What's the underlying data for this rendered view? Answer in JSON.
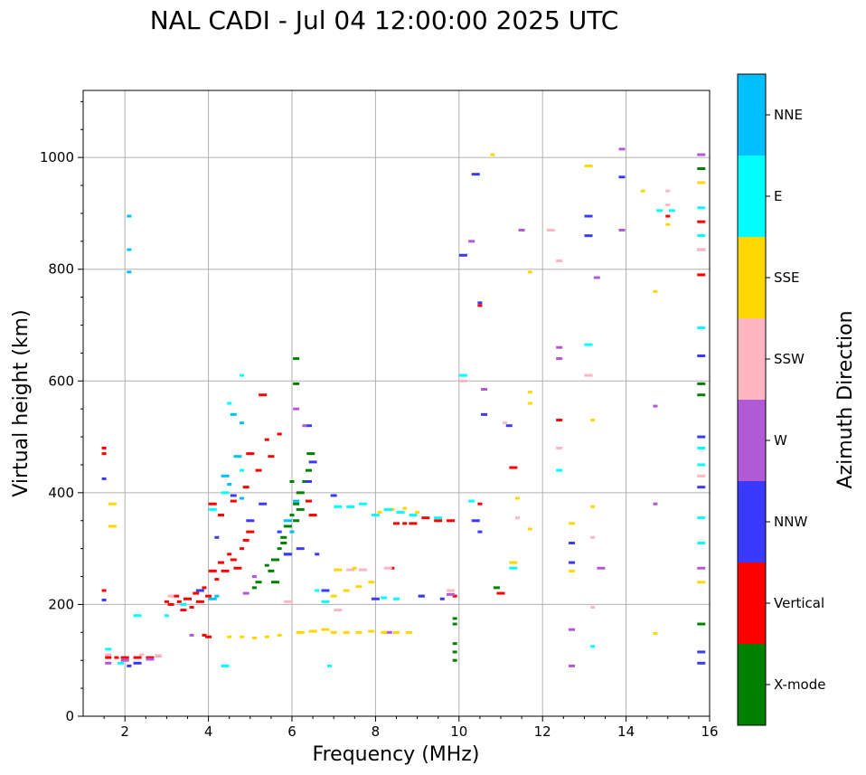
{
  "chart_data": {
    "type": "scatter",
    "title": "NAL CADI - Jul 04 12:00:00 2025 UTC",
    "xlabel": "Frequency (MHz)",
    "ylabel": "Virtual height (km)",
    "xlim": [
      1,
      16
    ],
    "ylim": [
      0,
      1120
    ],
    "xticks": [
      2,
      4,
      6,
      8,
      10,
      12,
      14,
      16
    ],
    "yticks": [
      0,
      200,
      400,
      600,
      800,
      1000
    ],
    "grid": true,
    "colorbar": {
      "label": "Azimuth Direction",
      "categories": [
        "X-mode",
        "Vertical",
        "NNW",
        "W",
        "SSW",
        "SSE",
        "E",
        "NNE"
      ],
      "colors": [
        "#008000",
        "#ff0000",
        "#3a3aff",
        "#b05ad6",
        "#ffb6c1",
        "#ffd700",
        "#00ffff",
        "#00bfff"
      ]
    },
    "series": [
      {
        "name": "X-mode",
        "color": "#008000",
        "points": [
          [
            5.6,
            280
          ],
          [
            5.7,
            300
          ],
          [
            5.8,
            320
          ],
          [
            5.9,
            340
          ],
          [
            6.0,
            360
          ],
          [
            6.1,
            380
          ],
          [
            6.2,
            400
          ],
          [
            6.3,
            420
          ],
          [
            6.4,
            440
          ],
          [
            6.45,
            470
          ],
          [
            5.5,
            260
          ],
          [
            5.6,
            240
          ],
          [
            5.9,
            290
          ],
          [
            6.0,
            330
          ],
          [
            6.1,
            350
          ],
          [
            6.2,
            370
          ],
          [
            6.0,
            420
          ],
          [
            5.8,
            310
          ],
          [
            6.1,
            640
          ],
          [
            6.1,
            595
          ],
          [
            9.9,
            100
          ],
          [
            9.9,
            115
          ],
          [
            9.9,
            130
          ],
          [
            9.9,
            165
          ],
          [
            9.9,
            175
          ],
          [
            9.1,
            215
          ],
          [
            10.9,
            230
          ],
          [
            15.8,
            165
          ],
          [
            15.8,
            575
          ],
          [
            15.8,
            595
          ],
          [
            15.8,
            980
          ],
          [
            5.4,
            270
          ],
          [
            5.2,
            240
          ],
          [
            5.1,
            230
          ]
        ]
      },
      {
        "name": "Vertical",
        "color": "#ff0000",
        "points": [
          [
            1.5,
            480
          ],
          [
            1.5,
            470
          ],
          [
            1.5,
            225
          ],
          [
            1.6,
            105
          ],
          [
            1.8,
            105
          ],
          [
            2.0,
            105
          ],
          [
            2.3,
            105
          ],
          [
            2.6,
            105
          ],
          [
            2.8,
            108
          ],
          [
            3.0,
            205
          ],
          [
            3.1,
            200
          ],
          [
            3.2,
            215
          ],
          [
            3.3,
            205
          ],
          [
            3.4,
            190
          ],
          [
            3.5,
            210
          ],
          [
            3.6,
            195
          ],
          [
            3.7,
            220
          ],
          [
            3.8,
            205
          ],
          [
            3.9,
            230
          ],
          [
            4.0,
            215
          ],
          [
            4.1,
            260
          ],
          [
            4.2,
            245
          ],
          [
            4.3,
            275
          ],
          [
            4.4,
            260
          ],
          [
            4.5,
            290
          ],
          [
            4.6,
            280
          ],
          [
            4.7,
            265
          ],
          [
            4.8,
            300
          ],
          [
            4.9,
            315
          ],
          [
            5.0,
            330
          ],
          [
            4.1,
            380
          ],
          [
            4.3,
            360
          ],
          [
            4.6,
            385
          ],
          [
            4.9,
            410
          ],
          [
            5.2,
            440
          ],
          [
            5.4,
            495
          ],
          [
            5.7,
            505
          ],
          [
            5.0,
            470
          ],
          [
            5.5,
            465
          ],
          [
            5.3,
            575
          ],
          [
            3.9,
            145
          ],
          [
            4.0,
            142
          ],
          [
            6.4,
            385
          ],
          [
            6.5,
            360
          ],
          [
            8.5,
            345
          ],
          [
            8.7,
            345
          ],
          [
            8.9,
            345
          ],
          [
            9.2,
            355
          ],
          [
            9.5,
            350
          ],
          [
            9.8,
            350
          ],
          [
            8.4,
            265
          ],
          [
            9.9,
            215
          ],
          [
            10.5,
            380
          ],
          [
            11.0,
            220
          ],
          [
            10.5,
            735
          ],
          [
            11.3,
            445
          ],
          [
            12.4,
            530
          ],
          [
            15.0,
            895
          ],
          [
            15.8,
            790
          ],
          [
            15.8,
            885
          ]
        ]
      },
      {
        "name": "NNW",
        "color": "#3a3aff",
        "points": [
          [
            1.5,
            425
          ],
          [
            1.5,
            208
          ],
          [
            2.1,
            90
          ],
          [
            2.3,
            95
          ],
          [
            3.8,
            225
          ],
          [
            4.2,
            320
          ],
          [
            4.6,
            395
          ],
          [
            5.0,
            350
          ],
          [
            5.3,
            380
          ],
          [
            5.7,
            330
          ],
          [
            5.9,
            290
          ],
          [
            6.2,
            300
          ],
          [
            6.4,
            420
          ],
          [
            6.5,
            455
          ],
          [
            6.4,
            520
          ],
          [
            6.6,
            290
          ],
          [
            6.8,
            225
          ],
          [
            7.0,
            395
          ],
          [
            8.0,
            210
          ],
          [
            9.1,
            215
          ],
          [
            9.6,
            210
          ],
          [
            10.4,
            970
          ],
          [
            10.5,
            740
          ],
          [
            10.5,
            330
          ],
          [
            10.4,
            350
          ],
          [
            10.6,
            540
          ],
          [
            11.2,
            520
          ],
          [
            12.7,
            275
          ],
          [
            12.7,
            310
          ],
          [
            13.1,
            895
          ],
          [
            13.1,
            860
          ],
          [
            13.9,
            965
          ],
          [
            15.8,
            95
          ],
          [
            15.8,
            115
          ],
          [
            15.8,
            500
          ],
          [
            15.8,
            835
          ],
          [
            15.8,
            645
          ],
          [
            15.8,
            410
          ],
          [
            10.1,
            825
          ]
        ]
      },
      {
        "name": "W",
        "color": "#b05ad6",
        "points": [
          [
            1.6,
            95
          ],
          [
            2.0,
            100
          ],
          [
            2.6,
            102
          ],
          [
            3.6,
            145
          ],
          [
            4.9,
            220
          ],
          [
            5.1,
            250
          ],
          [
            6.1,
            550
          ],
          [
            6.3,
            520
          ],
          [
            8.3,
            150
          ],
          [
            9.8,
            218
          ],
          [
            10.6,
            585
          ],
          [
            10.3,
            850
          ],
          [
            11.5,
            870
          ],
          [
            12.4,
            640
          ],
          [
            12.4,
            660
          ],
          [
            12.7,
            155
          ],
          [
            12.7,
            90
          ],
          [
            13.3,
            785
          ],
          [
            13.4,
            265
          ],
          [
            13.9,
            870
          ],
          [
            13.9,
            1015
          ],
          [
            14.7,
            555
          ],
          [
            14.7,
            380
          ],
          [
            15.8,
            1005
          ],
          [
            15.8,
            265
          ]
        ]
      },
      {
        "name": "SSW",
        "color": "#ffb6c1",
        "points": [
          [
            1.6,
            110
          ],
          [
            2.4,
            110
          ],
          [
            2.8,
            108
          ],
          [
            3.1,
            215
          ],
          [
            5.9,
            205
          ],
          [
            7.1,
            190
          ],
          [
            7.4,
            262
          ],
          [
            7.7,
            262
          ],
          [
            8.3,
            265
          ],
          [
            9.8,
            225
          ],
          [
            10.1,
            600
          ],
          [
            11.1,
            525
          ],
          [
            11.4,
            355
          ],
          [
            12.2,
            870
          ],
          [
            12.4,
            480
          ],
          [
            12.4,
            815
          ],
          [
            13.1,
            610
          ],
          [
            13.2,
            320
          ],
          [
            13.2,
            195
          ],
          [
            15.0,
            915
          ],
          [
            15.0,
            940
          ],
          [
            15.8,
            430
          ],
          [
            15.8,
            835
          ]
        ]
      },
      {
        "name": "SSE",
        "color": "#ffd700",
        "points": [
          [
            1.7,
            380
          ],
          [
            1.7,
            340
          ],
          [
            4.5,
            142
          ],
          [
            4.8,
            142
          ],
          [
            5.1,
            140
          ],
          [
            5.4,
            142
          ],
          [
            5.7,
            145
          ],
          [
            6.2,
            150
          ],
          [
            6.5,
            152
          ],
          [
            6.8,
            155
          ],
          [
            7.0,
            150
          ],
          [
            7.3,
            150
          ],
          [
            7.6,
            150
          ],
          [
            7.9,
            152
          ],
          [
            8.2,
            150
          ],
          [
            8.5,
            150
          ],
          [
            8.8,
            150
          ],
          [
            7.0,
            215
          ],
          [
            7.3,
            225
          ],
          [
            7.6,
            232
          ],
          [
            7.9,
            240
          ],
          [
            8.1,
            365
          ],
          [
            8.4,
            370
          ],
          [
            8.7,
            372
          ],
          [
            9.0,
            365
          ],
          [
            7.1,
            262
          ],
          [
            7.5,
            265
          ],
          [
            10.8,
            1005
          ],
          [
            11.3,
            275
          ],
          [
            11.4,
            390
          ],
          [
            11.7,
            580
          ],
          [
            11.7,
            560
          ],
          [
            11.7,
            795
          ],
          [
            11.7,
            335
          ],
          [
            12.7,
            345
          ],
          [
            12.7,
            260
          ],
          [
            13.1,
            985
          ],
          [
            13.2,
            375
          ],
          [
            13.2,
            530
          ],
          [
            14.4,
            940
          ],
          [
            14.7,
            760
          ],
          [
            14.7,
            148
          ],
          [
            15.0,
            880
          ],
          [
            15.8,
            240
          ],
          [
            15.8,
            955
          ]
        ]
      },
      {
        "name": "E",
        "color": "#00ffff",
        "points": [
          [
            1.6,
            120
          ],
          [
            1.9,
            95
          ],
          [
            2.3,
            180
          ],
          [
            3.0,
            180
          ],
          [
            3.4,
            200
          ],
          [
            4.4,
            90
          ],
          [
            4.1,
            370
          ],
          [
            4.4,
            400
          ],
          [
            4.8,
            440
          ],
          [
            4.5,
            560
          ],
          [
            4.8,
            610
          ],
          [
            6.9,
            90
          ],
          [
            6.6,
            225
          ],
          [
            6.8,
            205
          ],
          [
            7.1,
            375
          ],
          [
            7.4,
            375
          ],
          [
            7.7,
            380
          ],
          [
            8.0,
            360
          ],
          [
            8.3,
            370
          ],
          [
            8.6,
            365
          ],
          [
            8.9,
            360
          ],
          [
            8.2,
            212
          ],
          [
            8.5,
            210
          ],
          [
            9.5,
            355
          ],
          [
            10.1,
            610
          ],
          [
            10.3,
            385
          ],
          [
            11.3,
            265
          ],
          [
            12.4,
            440
          ],
          [
            13.1,
            665
          ],
          [
            13.2,
            125
          ],
          [
            14.8,
            905
          ],
          [
            15.1,
            905
          ],
          [
            15.8,
            910
          ],
          [
            15.8,
            860
          ],
          [
            15.8,
            695
          ],
          [
            15.8,
            480
          ],
          [
            15.8,
            450
          ],
          [
            15.8,
            355
          ],
          [
            15.8,
            310
          ]
        ]
      },
      {
        "name": "NNE",
        "color": "#00bfff",
        "points": [
          [
            2.1,
            895
          ],
          [
            2.1,
            835
          ],
          [
            2.1,
            795
          ],
          [
            4.4,
            430
          ],
          [
            4.5,
            415
          ],
          [
            4.7,
            465
          ],
          [
            4.8,
            390
          ],
          [
            4.6,
            540
          ],
          [
            4.8,
            525
          ],
          [
            6.1,
            385
          ],
          [
            6.0,
            330
          ],
          [
            5.9,
            350
          ],
          [
            4.2,
            215
          ],
          [
            4.1,
            210
          ]
        ]
      }
    ]
  }
}
